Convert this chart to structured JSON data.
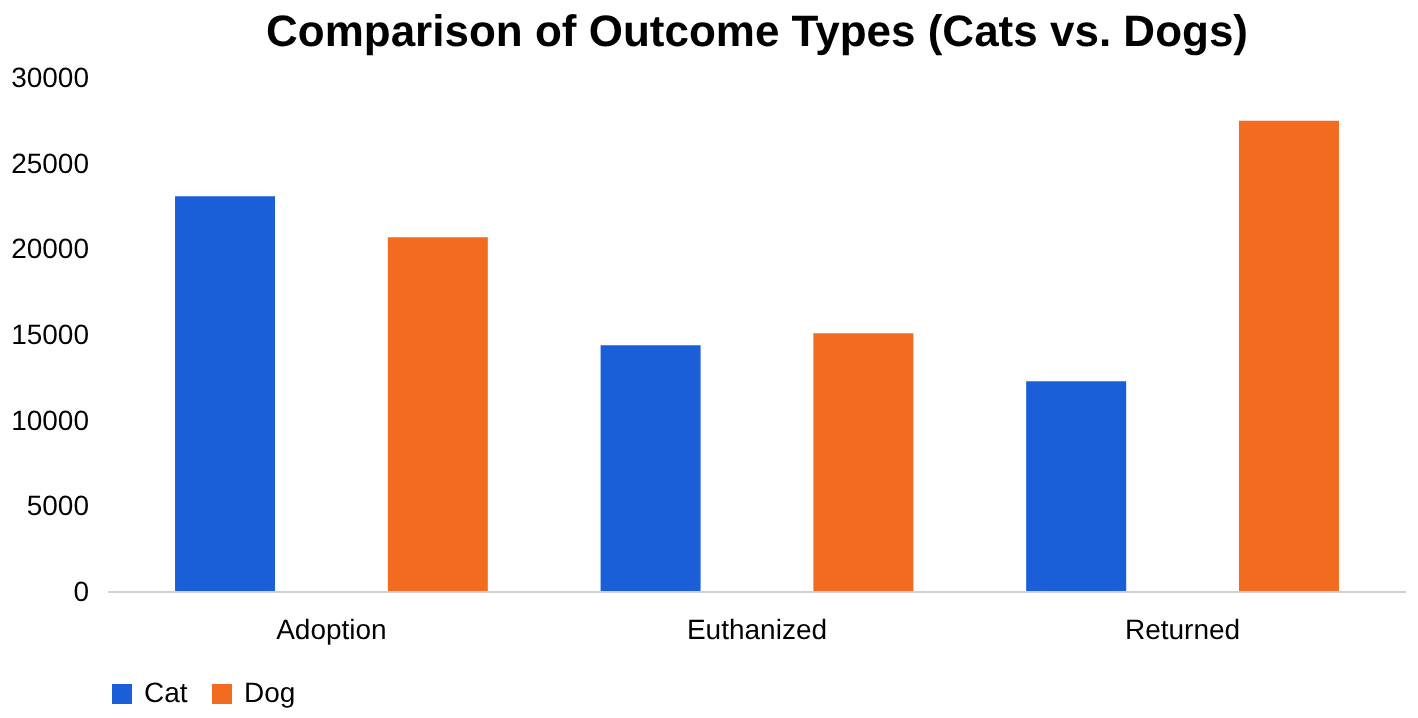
{
  "chart_data": {
    "type": "bar",
    "title": "Comparison of Outcome Types (Cats vs. Dogs)",
    "categories": [
      "Adoption",
      "Euthanized",
      "Returned"
    ],
    "series": [
      {
        "name": "Cat",
        "color": "#1a5fd8",
        "values": [
          23100,
          14400,
          12300
        ]
      },
      {
        "name": "Dog",
        "color": "#f26b21",
        "values": [
          20700,
          15100,
          27500
        ]
      }
    ],
    "ylim": [
      0,
      30000
    ],
    "yticks": [
      0,
      5000,
      10000,
      15000,
      20000,
      25000,
      30000
    ],
    "grid": false,
    "legend": "bottom"
  }
}
